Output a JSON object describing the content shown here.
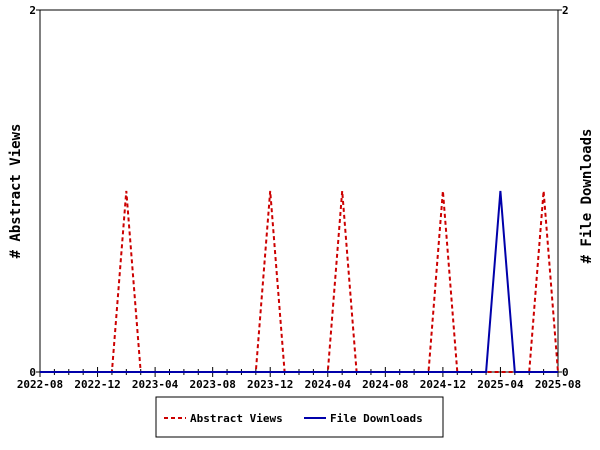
{
  "chart_data": {
    "type": "line",
    "title": "",
    "xlabel": "",
    "ylabel_left": "# Abstract Views",
    "ylabel_right": "# File Downloads",
    "x_tick_labels": [
      "2022-08",
      "2022-12",
      "2023-04",
      "2023-08",
      "2023-12",
      "2024-04",
      "2024-08",
      "2024-12",
      "2025-04",
      "2025-08"
    ],
    "x_months": [
      "2022-08",
      "2022-09",
      "2022-10",
      "2022-11",
      "2022-12",
      "2023-01",
      "2023-02",
      "2023-03",
      "2023-04",
      "2023-05",
      "2023-06",
      "2023-07",
      "2023-08",
      "2023-09",
      "2023-10",
      "2023-11",
      "2023-12",
      "2024-01",
      "2024-02",
      "2024-03",
      "2024-04",
      "2024-05",
      "2024-06",
      "2024-07",
      "2024-08",
      "2024-09",
      "2024-10",
      "2024-11",
      "2024-12",
      "2025-01",
      "2025-02",
      "2025-03",
      "2025-04",
      "2025-05",
      "2025-06",
      "2025-07",
      "2025-08"
    ],
    "ylim_left": [
      0,
      2
    ],
    "ylim_right": [
      0,
      2
    ],
    "y_ticks_left": [
      "0",
      "2"
    ],
    "y_ticks_right": [
      "0",
      "2"
    ],
    "legend_position": "bottom",
    "series": [
      {
        "name": "Abstract Views",
        "color": "#cc0000",
        "style": "dashed",
        "axis": "left",
        "values": [
          0,
          0,
          0,
          0,
          0,
          0,
          1,
          0,
          0,
          0,
          0,
          0,
          0,
          0,
          0,
          0,
          1,
          0,
          0,
          0,
          0,
          1,
          0,
          0,
          0,
          0,
          0,
          0,
          1,
          0,
          0,
          0,
          0,
          0,
          0,
          1,
          0
        ]
      },
      {
        "name": "File Downloads",
        "color": "#0000aa",
        "style": "solid",
        "axis": "right",
        "values": [
          0,
          0,
          0,
          0,
          0,
          0,
          0,
          0,
          0,
          0,
          0,
          0,
          0,
          0,
          0,
          0,
          0,
          0,
          0,
          0,
          0,
          0,
          0,
          0,
          0,
          0,
          0,
          0,
          0,
          0,
          0,
          0,
          1,
          0,
          0,
          0,
          0
        ]
      }
    ]
  }
}
